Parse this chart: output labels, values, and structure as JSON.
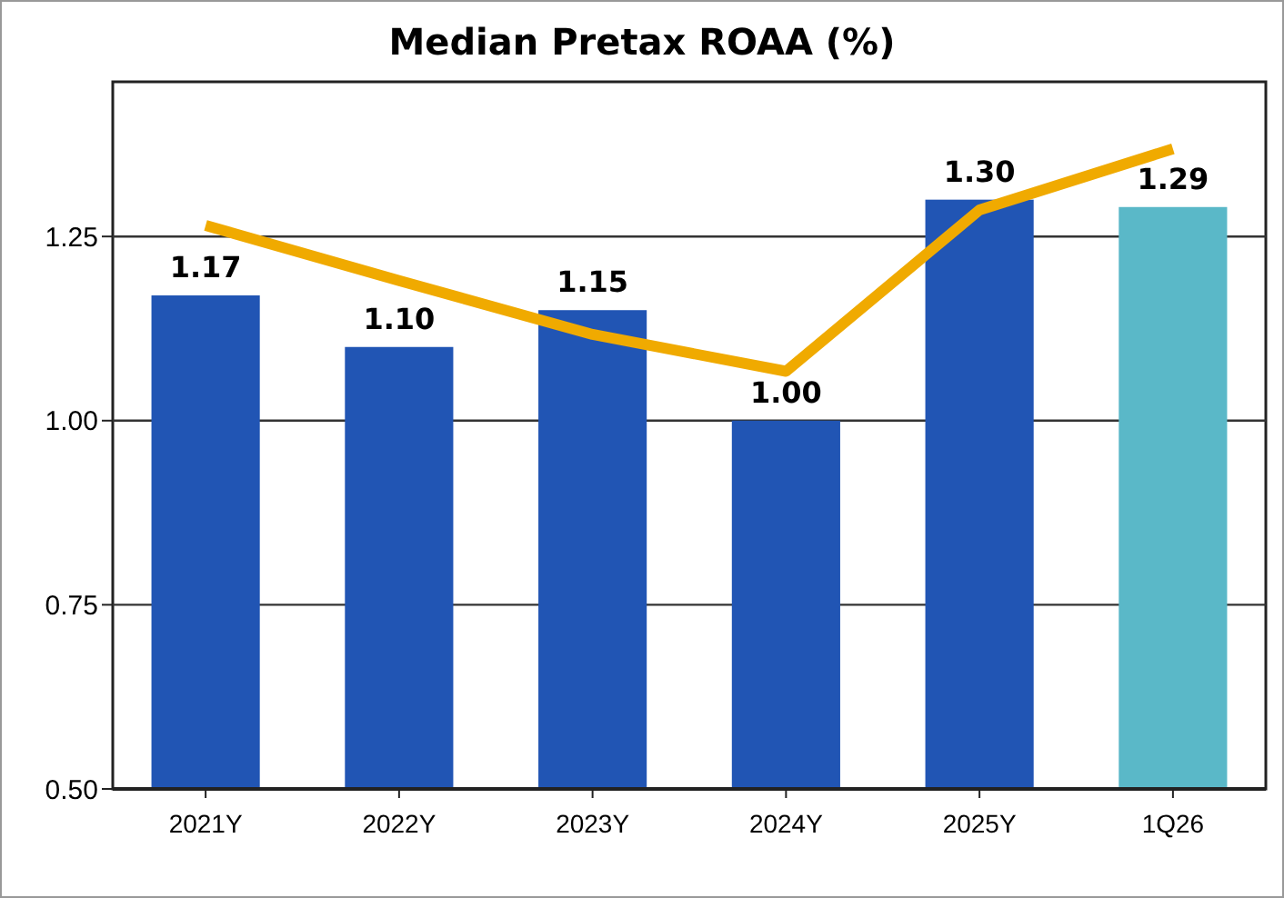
{
  "chart_data": {
    "type": "bar",
    "title": "Median Pretax ROAA (%)",
    "categories": [
      "2021Y",
      "2022Y",
      "2023Y",
      "2024Y",
      "2025Y",
      "1Q26"
    ],
    "series": [
      {
        "colors": [
          "#2155b4",
          "#2155b4",
          "#2155b4",
          "#2155b4",
          "#2155b4",
          "#5ab8c8"
        ],
        "values": [
          1.17,
          1.1,
          1.15,
          1.0,
          1.3,
          1.29
        ],
        "value_labels": [
          "1.17",
          "1.10",
          "1.15",
          "1.00",
          "1.30",
          "1.29"
        ]
      },
      {
        "type": "line",
        "color": "#f0aa00",
        "values": [
          1.265,
          1.19,
          1.117,
          1.067,
          1.286,
          1.369
        ]
      }
    ],
    "ylim": [
      0.5,
      1.46
    ],
    "yticks": [
      {
        "value": 0.5,
        "label": "0.50"
      },
      {
        "value": 0.75,
        "label": "0.75"
      },
      {
        "value": 1,
        "label": "1.00"
      },
      {
        "value": 1.25,
        "label": "1.25"
      }
    ],
    "grid": "y",
    "marker": "none",
    "line_style": "solid"
  }
}
